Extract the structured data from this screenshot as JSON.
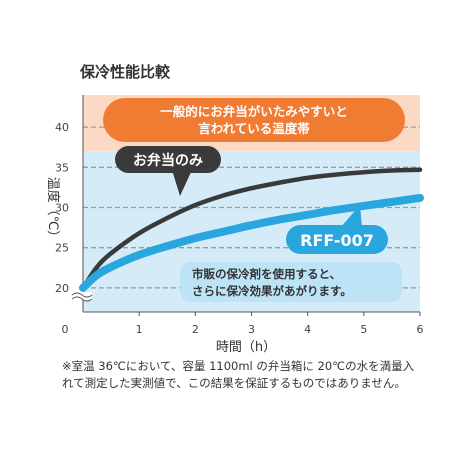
{
  "chart_data": {
    "type": "line",
    "title": "保冷性能比較",
    "xlabel": "時間（h）",
    "ylabel": "温度（℃）",
    "xlim": [
      0,
      6
    ],
    "ylim": [
      17,
      44
    ],
    "x_ticks": [
      "0",
      "1",
      "2",
      "3",
      "4",
      "5",
      "6"
    ],
    "y_ticks": [
      "20",
      "25",
      "30",
      "35",
      "40"
    ],
    "grid": true,
    "axis_break": true,
    "zones": [
      {
        "name": "warm",
        "from": 37,
        "to": 44,
        "color": "#fbd9c4"
      },
      {
        "name": "cool",
        "from": 17,
        "to": 37,
        "color": "#d5ecf8"
      }
    ],
    "series": [
      {
        "name": "お弁当のみ",
        "color": "#3a3a3a",
        "x": [
          0,
          0.25,
          0.5,
          1,
          1.5,
          2,
          2.5,
          3,
          3.5,
          4,
          4.5,
          5,
          5.5,
          6
        ],
        "y": [
          20,
          22.6,
          24.3,
          26.8,
          28.7,
          30.3,
          31.5,
          32.4,
          33.1,
          33.7,
          34.1,
          34.4,
          34.6,
          34.7
        ]
      },
      {
        "name": "RFF-007",
        "color": "#2aa6df",
        "x": [
          0,
          0.25,
          0.5,
          1,
          1.5,
          2,
          2.5,
          3,
          3.5,
          4,
          4.5,
          5,
          5.5,
          6
        ],
        "y": [
          20,
          21.6,
          22.6,
          24.1,
          25.2,
          26.2,
          27.0,
          27.8,
          28.5,
          29.1,
          29.7,
          30.2,
          30.7,
          31.2
        ]
      }
    ],
    "annotations": {
      "warm_zone_label": [
        "一般的にお弁当がいたみやすいと",
        "言われている温度帯"
      ],
      "series1_label": "お弁当のみ",
      "series2_label": "RFF-007",
      "cool_label": [
        "市販の保冷剤を使用すると、",
        "さらに保冷効果があがります。"
      ]
    },
    "colors": {
      "warm_callout": "#f07c33",
      "dark_callout": "#3a3a3a",
      "blue_callout": "#2aa6df",
      "info_box": "#bde3f7"
    }
  },
  "footnote": [
    "※室温 36℃において、容量 1100ml の弁当箱に 20℃の水を満量入",
    "れて測定した実測値で、この結果を保証するものではありません。"
  ]
}
